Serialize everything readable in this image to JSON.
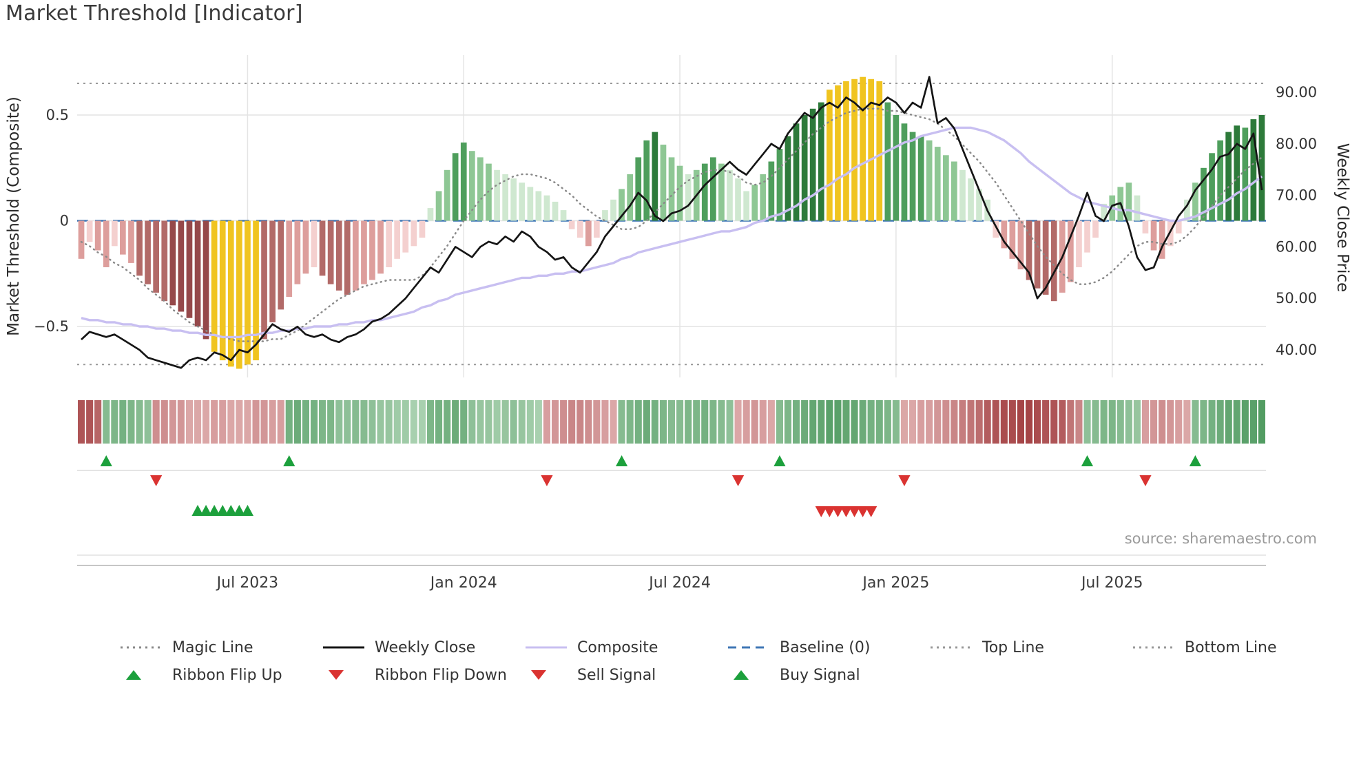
{
  "title": "Market Threshold [Indicator]",
  "source_note": "source: sharemaestro.com",
  "axes": {
    "left_label": "Market Threshold (Composite)",
    "right_label": "Weekly Close Price",
    "left_ticks": [
      {
        "v": 0.5,
        "t": "0.5"
      },
      {
        "v": 0,
        "t": "0"
      },
      {
        "v": -0.5,
        "t": "−0.5"
      }
    ],
    "right_ticks": [
      {
        "v": 90,
        "t": "90.00"
      },
      {
        "v": 80,
        "t": "80.00"
      },
      {
        "v": 70,
        "t": "70.00"
      },
      {
        "v": 60,
        "t": "60.00"
      },
      {
        "v": 50,
        "t": "50.00"
      },
      {
        "v": 40,
        "t": "40.00"
      }
    ],
    "x_ticks": [
      {
        "i": 20,
        "t": "Jul 2023"
      },
      {
        "i": 46,
        "t": "Jan 2024"
      },
      {
        "i": 72,
        "t": "Jul 2024"
      },
      {
        "i": 98,
        "t": "Jan 2025"
      },
      {
        "i": 124,
        "t": "Jul 2025"
      }
    ]
  },
  "colors": {
    "positive_palette": [
      "#cfe8d0",
      "#8ec794",
      "#4e9e5c",
      "#2d7a3a"
    ],
    "negative_palette": [
      "#f4d0cf",
      "#dd9e9c",
      "#b26a68",
      "#95484a"
    ],
    "extreme": "#f0c420",
    "weekly_close": "#151515",
    "composite": "#c8bff1",
    "magic": "#8a8a8a",
    "baseline": "#3f77b5",
    "threshold": "#999999",
    "grid": "#e4e4e4",
    "flip_up": "#1ca03c",
    "flip_down": "#da3331",
    "buy": "#1ca03c",
    "sell": "#da3331",
    "ribbon_green_dark": "#2f8743",
    "ribbon_green_light": "#dcefdd",
    "ribbon_red_dark": "#9c3336",
    "ribbon_red_light": "#f6d8d7"
  },
  "legend": {
    "row1": [
      {
        "label": "Magic Line",
        "swatch": "line",
        "color": "#8a8a8a",
        "dash": "3 6"
      },
      {
        "label": "Weekly Close",
        "swatch": "line",
        "color": "#151515",
        "dash": ""
      },
      {
        "label": "Composite",
        "swatch": "line",
        "color": "#c8bff1",
        "dash": ""
      },
      {
        "label": "Baseline (0)",
        "swatch": "line",
        "color": "#3f77b5",
        "dash": "12 8"
      },
      {
        "label": "Top Line",
        "swatch": "line",
        "color": "#999999",
        "dash": "3 6"
      },
      {
        "label": "Bottom Line",
        "swatch": "line",
        "color": "#999999",
        "dash": "3 6"
      }
    ],
    "row2": [
      {
        "label": "Ribbon Flip Up",
        "swatch": "triangle-up",
        "color": "#1ca03c"
      },
      {
        "label": "Ribbon Flip Down",
        "swatch": "triangle-down",
        "color": "#da3331"
      },
      {
        "label": "Sell Signal",
        "swatch": "triangle-down",
        "color": "#da3331"
      },
      {
        "label": "Buy Signal",
        "swatch": "triangle-up",
        "color": "#1ca03c"
      }
    ]
  },
  "chart_data": {
    "type": "combo_bar_line",
    "frequency": "weekly",
    "top_line": 0.65,
    "baseline": 0,
    "bottom_line": -0.68,
    "extreme_abs": 0.6,
    "left_axis_range": [
      -0.78,
      0.74
    ],
    "right_axis_range": [
      34,
      95
    ],
    "histogram": [
      -0.18,
      -0.1,
      -0.14,
      -0.22,
      -0.12,
      -0.16,
      -0.2,
      -0.26,
      -0.3,
      -0.34,
      -0.38,
      -0.4,
      -0.43,
      -0.46,
      -0.5,
      -0.56,
      -0.62,
      -0.66,
      -0.69,
      -0.7,
      -0.68,
      -0.66,
      -0.56,
      -0.48,
      -0.42,
      -0.36,
      -0.3,
      -0.25,
      -0.22,
      -0.26,
      -0.3,
      -0.33,
      -0.35,
      -0.33,
      -0.3,
      -0.28,
      -0.25,
      -0.22,
      -0.18,
      -0.15,
      -0.12,
      -0.08,
      0.06,
      0.14,
      0.24,
      0.32,
      0.37,
      0.33,
      0.3,
      0.27,
      0.24,
      0.22,
      0.2,
      0.18,
      0.16,
      0.14,
      0.12,
      0.09,
      0.05,
      -0.04,
      -0.08,
      -0.12,
      -0.08,
      0.05,
      0.1,
      0.15,
      0.22,
      0.3,
      0.38,
      0.42,
      0.36,
      0.3,
      0.26,
      0.22,
      0.24,
      0.27,
      0.3,
      0.27,
      0.24,
      0.2,
      0.14,
      0.17,
      0.22,
      0.28,
      0.34,
      0.4,
      0.46,
      0.5,
      0.53,
      0.56,
      0.62,
      0.64,
      0.66,
      0.67,
      0.68,
      0.67,
      0.66,
      0.56,
      0.5,
      0.46,
      0.42,
      0.4,
      0.38,
      0.35,
      0.31,
      0.28,
      0.24,
      0.2,
      0.15,
      0.1,
      -0.08,
      -0.13,
      -0.18,
      -0.23,
      -0.28,
      -0.32,
      -0.35,
      -0.38,
      -0.34,
      -0.29,
      -0.22,
      -0.15,
      -0.08,
      0.08,
      0.12,
      0.16,
      0.18,
      0.12,
      -0.06,
      -0.14,
      -0.18,
      -0.12,
      -0.06,
      0.1,
      0.18,
      0.25,
      0.32,
      0.38,
      0.42,
      0.45,
      0.44,
      0.48,
      0.5
    ],
    "weekly_close": [
      42,
      43.5,
      43,
      42.5,
      43,
      42,
      41,
      40,
      38.5,
      38,
      37.5,
      37,
      36.5,
      38,
      38.5,
      38,
      39.5,
      39,
      38,
      40,
      39.5,
      41,
      43,
      45,
      44,
      43.5,
      44.5,
      43,
      42.5,
      43,
      42,
      41.5,
      42.5,
      43,
      44,
      45.5,
      46,
      47,
      48.5,
      50,
      52,
      54,
      56,
      55,
      57.5,
      60,
      59,
      58,
      60,
      61,
      60.5,
      62,
      61,
      63,
      62,
      60,
      59,
      57.5,
      58,
      56,
      55,
      57,
      59,
      62,
      64,
      66,
      68,
      70.5,
      69,
      66,
      65,
      66.5,
      67,
      68,
      70,
      72,
      73.5,
      75,
      76.5,
      75,
      74,
      76,
      78,
      80,
      79,
      82,
      84,
      86,
      85,
      87,
      88,
      87,
      89,
      88,
      86.5,
      88,
      87.5,
      89,
      88,
      86,
      88,
      87,
      93,
      84,
      85,
      83,
      79,
      75,
      71,
      67,
      64,
      61,
      59,
      57,
      55,
      50,
      52,
      55,
      58,
      62,
      66,
      70.5,
      66,
      65,
      68,
      68.5,
      64,
      58,
      55.5,
      56,
      60,
      63,
      66,
      68,
      71,
      73,
      75,
      77.5,
      78,
      80,
      79,
      82,
      71
    ],
    "composite": [
      -0.46,
      -0.47,
      -0.47,
      -0.48,
      -0.48,
      -0.49,
      -0.49,
      -0.5,
      -0.5,
      -0.51,
      -0.51,
      -0.52,
      -0.52,
      -0.53,
      -0.53,
      -0.54,
      -0.54,
      -0.55,
      -0.55,
      -0.55,
      -0.54,
      -0.54,
      -0.53,
      -0.53,
      -0.52,
      -0.52,
      -0.51,
      -0.51,
      -0.5,
      -0.5,
      -0.5,
      -0.49,
      -0.49,
      -0.48,
      -0.48,
      -0.47,
      -0.47,
      -0.46,
      -0.45,
      -0.44,
      -0.43,
      -0.41,
      -0.4,
      -0.38,
      -0.37,
      -0.35,
      -0.34,
      -0.33,
      -0.32,
      -0.31,
      -0.3,
      -0.29,
      -0.28,
      -0.27,
      -0.27,
      -0.26,
      -0.26,
      -0.25,
      -0.25,
      -0.24,
      -0.24,
      -0.23,
      -0.22,
      -0.21,
      -0.2,
      -0.18,
      -0.17,
      -0.15,
      -0.14,
      -0.13,
      -0.12,
      -0.11,
      -0.1,
      -0.09,
      -0.08,
      -0.07,
      -0.06,
      -0.05,
      -0.05,
      -0.04,
      -0.03,
      -0.01,
      0.0,
      0.02,
      0.03,
      0.05,
      0.07,
      0.1,
      0.12,
      0.15,
      0.17,
      0.2,
      0.22,
      0.25,
      0.27,
      0.29,
      0.31,
      0.33,
      0.35,
      0.37,
      0.38,
      0.4,
      0.41,
      0.42,
      0.43,
      0.44,
      0.44,
      0.44,
      0.43,
      0.42,
      0.4,
      0.38,
      0.35,
      0.32,
      0.28,
      0.25,
      0.22,
      0.19,
      0.16,
      0.13,
      0.11,
      0.09,
      0.08,
      0.07,
      0.06,
      0.05,
      0.05,
      0.04,
      0.03,
      0.02,
      0.01,
      0.0,
      0.0,
      0.01,
      0.02,
      0.04,
      0.06,
      0.08,
      0.1,
      0.13,
      0.15,
      0.18,
      0.21
    ],
    "magic_line": [
      -0.1,
      -0.12,
      -0.15,
      -0.17,
      -0.2,
      -0.22,
      -0.25,
      -0.28,
      -0.32,
      -0.35,
      -0.38,
      -0.42,
      -0.45,
      -0.48,
      -0.5,
      -0.52,
      -0.54,
      -0.55,
      -0.56,
      -0.57,
      -0.57,
      -0.57,
      -0.57,
      -0.56,
      -0.56,
      -0.54,
      -0.52,
      -0.49,
      -0.46,
      -0.43,
      -0.4,
      -0.37,
      -0.35,
      -0.33,
      -0.31,
      -0.3,
      -0.29,
      -0.28,
      -0.28,
      -0.28,
      -0.28,
      -0.26,
      -0.22,
      -0.17,
      -0.12,
      -0.06,
      0.0,
      0.05,
      0.1,
      0.14,
      0.17,
      0.19,
      0.21,
      0.22,
      0.22,
      0.21,
      0.2,
      0.18,
      0.15,
      0.12,
      0.08,
      0.05,
      0.02,
      0.0,
      -0.02,
      -0.04,
      -0.04,
      -0.03,
      0.0,
      0.04,
      0.08,
      0.12,
      0.16,
      0.19,
      0.21,
      0.23,
      0.24,
      0.24,
      0.23,
      0.21,
      0.18,
      0.17,
      0.18,
      0.21,
      0.25,
      0.29,
      0.33,
      0.37,
      0.41,
      0.44,
      0.47,
      0.49,
      0.51,
      0.52,
      0.53,
      0.53,
      0.53,
      0.52,
      0.52,
      0.51,
      0.5,
      0.49,
      0.48,
      0.46,
      0.43,
      0.4,
      0.36,
      0.32,
      0.28,
      0.23,
      0.18,
      0.12,
      0.06,
      0.0,
      -0.06,
      -0.12,
      -0.17,
      -0.21,
      -0.25,
      -0.28,
      -0.3,
      -0.3,
      -0.29,
      -0.27,
      -0.24,
      -0.2,
      -0.16,
      -0.12,
      -0.1,
      -0.1,
      -0.11,
      -0.11,
      -0.1,
      -0.07,
      -0.03,
      0.02,
      0.07,
      0.12,
      0.16,
      0.2,
      0.24,
      0.27,
      0.3
    ],
    "ribbon": [
      -0.8,
      -0.8,
      -0.7,
      0.5,
      0.55,
      0.6,
      0.55,
      0.5,
      0.45,
      -0.45,
      -0.45,
      -0.4,
      -0.4,
      -0.3,
      -0.3,
      -0.3,
      -0.35,
      -0.35,
      -0.3,
      -0.3,
      -0.3,
      -0.4,
      -0.4,
      -0.35,
      -0.35,
      0.6,
      0.65,
      0.6,
      0.6,
      0.55,
      0.55,
      0.45,
      0.45,
      0.5,
      0.5,
      0.45,
      0.4,
      0.4,
      0.35,
      0.35,
      0.3,
      0.3,
      0.55,
      0.6,
      0.6,
      0.65,
      0.6,
      0.45,
      0.4,
      0.4,
      0.35,
      0.4,
      0.45,
      0.4,
      0.35,
      0.3,
      -0.35,
      -0.4,
      -0.45,
      -0.5,
      -0.5,
      -0.45,
      -0.4,
      -0.35,
      -0.3,
      0.5,
      0.55,
      0.6,
      0.65,
      0.6,
      0.55,
      0.5,
      0.5,
      0.55,
      0.55,
      0.6,
      0.55,
      0.5,
      0.45,
      -0.3,
      -0.35,
      -0.4,
      -0.35,
      -0.3,
      0.5,
      0.55,
      0.6,
      0.65,
      0.7,
      0.7,
      0.75,
      0.75,
      0.7,
      0.7,
      0.65,
      0.6,
      0.6,
      0.55,
      0.5,
      -0.3,
      -0.3,
      -0.35,
      -0.35,
      -0.4,
      -0.45,
      -0.5,
      -0.55,
      -0.6,
      -0.65,
      -0.75,
      -0.8,
      -0.85,
      -0.85,
      -0.9,
      -0.9,
      -0.85,
      -0.8,
      -0.8,
      -0.75,
      -0.6,
      -0.5,
      0.45,
      0.5,
      0.55,
      0.55,
      0.5,
      0.45,
      0.4,
      -0.35,
      -0.4,
      -0.45,
      -0.4,
      -0.35,
      -0.3,
      0.5,
      0.55,
      0.6,
      0.65,
      0.7,
      0.7,
      0.75,
      0.75,
      0.8
    ],
    "signals": {
      "ribbon_flip_up": [
        3,
        25,
        65,
        84,
        121,
        134
      ],
      "ribbon_flip_down": [
        9,
        56,
        79,
        99,
        128
      ],
      "buy": [
        14,
        15,
        16,
        17,
        18,
        19,
        20
      ],
      "sell": [
        89,
        90,
        91,
        92,
        93,
        94,
        95
      ]
    }
  }
}
